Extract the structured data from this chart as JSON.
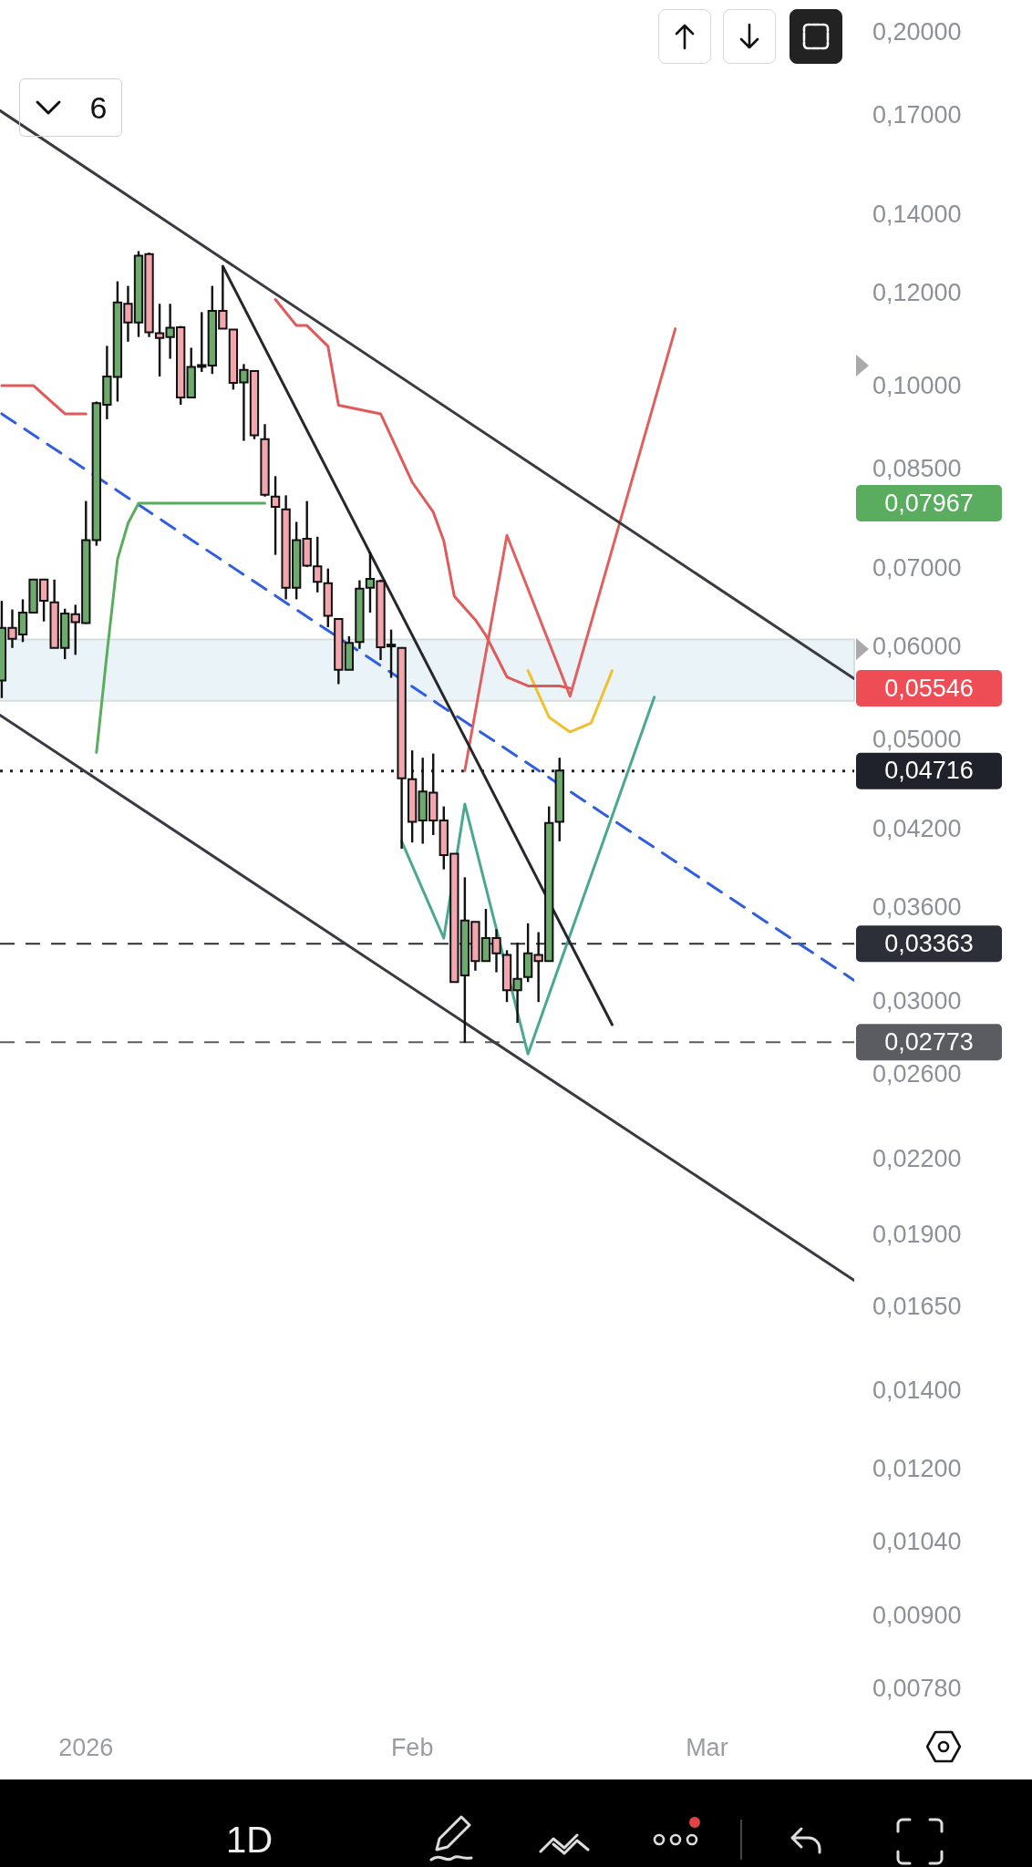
{
  "chart_data": {
    "type": "candlestick",
    "x": [
      "2025-12-24",
      "2025-12-25",
      "2025-12-26",
      "2025-12-27",
      "2025-12-28",
      "2025-12-29",
      "2025-12-30",
      "2025-12-31",
      "2026-01-01",
      "2026-01-02",
      "2026-01-03",
      "2026-01-04",
      "2026-01-05",
      "2026-01-06",
      "2026-01-07",
      "2026-01-08",
      "2026-01-09",
      "2026-01-10",
      "2026-01-11",
      "2026-01-12",
      "2026-01-13",
      "2026-01-14",
      "2026-01-15",
      "2026-01-16",
      "2026-01-17",
      "2026-01-18",
      "2026-01-19",
      "2026-01-20",
      "2026-01-21",
      "2026-01-22",
      "2026-01-23",
      "2026-01-24",
      "2026-01-25",
      "2026-01-26",
      "2026-01-27",
      "2026-01-28",
      "2026-01-29",
      "2026-01-30",
      "2026-01-31",
      "2026-02-01",
      "2026-02-02",
      "2026-02-03",
      "2026-02-04",
      "2026-02-05",
      "2026-02-06",
      "2026-02-07",
      "2026-02-08",
      "2026-02-09",
      "2026-02-10",
      "2026-02-11",
      "2026-02-12",
      "2026-02-13",
      "2026-02-14",
      "2026-02-15"
    ],
    "ohlc": [
      [
        0.0563,
        0.0658,
        0.0544,
        0.0624
      ],
      [
        0.0624,
        0.0647,
        0.06,
        0.0611
      ],
      [
        0.0616,
        0.066,
        0.0607,
        0.0643
      ],
      [
        0.0643,
        0.0687,
        0.0642,
        0.0686
      ],
      [
        0.0686,
        0.0687,
        0.0632,
        0.0658
      ],
      [
        0.0656,
        0.0686,
        0.06,
        0.06
      ],
      [
        0.06,
        0.0648,
        0.0587,
        0.0642
      ],
      [
        0.0641,
        0.0653,
        0.0592,
        0.0631
      ],
      [
        0.063,
        0.08,
        0.0629,
        0.0741
      ],
      [
        0.0741,
        0.0972,
        0.0733,
        0.0969
      ],
      [
        0.0966,
        0.1084,
        0.0939,
        0.1021
      ],
      [
        0.102,
        0.123,
        0.0972,
        0.118
      ],
      [
        0.1177,
        0.1219,
        0.1093,
        0.1135
      ],
      [
        0.1135,
        0.1305,
        0.1103,
        0.1293
      ],
      [
        0.1297,
        0.1301,
        0.1103,
        0.1113
      ],
      [
        0.1111,
        0.1177,
        0.1021,
        0.1101
      ],
      [
        0.1103,
        0.1177,
        0.1057,
        0.1123
      ],
      [
        0.1124,
        0.1127,
        0.0966,
        0.098
      ],
      [
        0.098,
        0.108,
        0.098,
        0.104
      ],
      [
        0.1042,
        0.1158,
        0.103,
        0.1044
      ],
      [
        0.1043,
        0.1219,
        0.1026,
        0.1161
      ],
      [
        0.1161,
        0.1265,
        0.1121,
        0.1121
      ],
      [
        0.1119,
        0.1119,
        0.0995,
        0.1008
      ],
      [
        0.1009,
        0.1046,
        0.09,
        0.1034
      ],
      [
        0.1032,
        0.1032,
        0.0903,
        0.091
      ],
      [
        0.0903,
        0.093,
        0.0807,
        0.081
      ],
      [
        0.0807,
        0.084,
        0.072,
        0.0791
      ],
      [
        0.0787,
        0.0809,
        0.066,
        0.0675
      ],
      [
        0.0675,
        0.0768,
        0.066,
        0.0741
      ],
      [
        0.0743,
        0.08,
        0.0703,
        0.0705
      ],
      [
        0.0704,
        0.0746,
        0.0669,
        0.0683
      ],
      [
        0.0681,
        0.0701,
        0.0625,
        0.0639
      ],
      [
        0.0635,
        0.0636,
        0.0559,
        0.0575
      ],
      [
        0.0575,
        0.0614,
        0.0575,
        0.0606
      ],
      [
        0.0607,
        0.0685,
        0.0599,
        0.0674
      ],
      [
        0.0675,
        0.0724,
        0.0643,
        0.0687
      ],
      [
        0.0684,
        0.0686,
        0.0586,
        0.0601
      ],
      [
        0.0604,
        0.0622,
        0.0566,
        0.0603
      ],
      [
        0.06,
        0.0601,
        0.0405,
        0.0465
      ],
      [
        0.0464,
        0.0491,
        0.041,
        0.0427
      ],
      [
        0.0428,
        0.0484,
        0.0409,
        0.0453
      ],
      [
        0.0452,
        0.0488,
        0.0416,
        0.0428
      ],
      [
        0.0428,
        0.044,
        0.0389,
        0.04
      ],
      [
        0.0401,
        0.0401,
        0.0312,
        0.0312
      ],
      [
        0.0316,
        0.0383,
        0.0277,
        0.0352
      ],
      [
        0.0351,
        0.0351,
        0.0319,
        0.0325
      ],
      [
        0.0325,
        0.036,
        0.0325,
        0.034
      ],
      [
        0.034,
        0.0346,
        0.0318,
        0.033
      ],
      [
        0.0329,
        0.0332,
        0.03,
        0.0307
      ],
      [
        0.0307,
        0.0337,
        0.0288,
        0.0314
      ],
      [
        0.0315,
        0.035,
        0.0312,
        0.033
      ],
      [
        0.0329,
        0.0344,
        0.03,
        0.0325
      ],
      [
        0.0325,
        0.044,
        0.0325,
        0.0426
      ],
      [
        0.0427,
        0.0484,
        0.0411,
        0.0472
      ]
    ],
    "series": [
      {
        "type": "line",
        "color": "#e05a5a",
        "x": [
          "2025-12-24",
          "2025-12-27",
          "2025-12-30",
          "2026-01-01",
          "2026-01-10",
          "2026-01-19",
          "2026-01-21",
          "2026-01-22",
          "2026-01-24",
          "2026-01-25",
          "2026-01-29",
          "2026-02-01",
          "2026-02-03",
          "2026-02-04",
          "2026-02-05",
          "2026-02-07",
          "2026-02-08",
          "2026-02-10",
          "2026-02-12",
          "2026-02-15",
          "2026-02-16"
        ],
        "values": [
          0.1003,
          0.1003,
          0.0949,
          0.0949,
          null,
          0.1187,
          0.1128,
          0.1128,
          0.1083,
          0.0965,
          0.0949,
          0.083,
          0.0783,
          0.074,
          0.0664,
          0.0634,
          0.0615,
          0.0567,
          0.0557,
          0.0557,
          0.05546
        ]
      },
      {
        "type": "line",
        "color": "#5aac5e",
        "x": [
          "2026-01-02",
          "2026-01-03",
          "2026-01-04",
          "2026-01-05",
          "2026-01-06",
          "2026-01-18"
        ],
        "values": [
          0.0489,
          0.0594,
          0.0714,
          0.0766,
          0.07967,
          0.07967
        ]
      },
      {
        "type": "line",
        "color": "#3a3b42",
        "x": [
          "2025-12-23T20:00",
          "2026-03-15"
        ],
        "values": [
          0.1718,
          0.0565
        ]
      },
      {
        "type": "line",
        "color": "#3a3b42",
        "x": [
          "2025-12-23T20:00",
          "2026-03-15"
        ],
        "values": [
          0.0526,
          0.0174
        ]
      },
      {
        "type": "line",
        "color": "#2f5fe0",
        "line_style": "dashed",
        "x": [
          "2025-12-24",
          "2026-03-15"
        ],
        "values": [
          0.0949,
          0.0313
        ]
      },
      {
        "type": "line",
        "color": "#26272c",
        "x": [
          "2026-01-14",
          "2026-02-20"
        ],
        "values": [
          0.1267,
          0.0287
        ]
      },
      {
        "type": "line",
        "color": "#e06060",
        "x": [
          "2026-02-06",
          "2026-02-10",
          "2026-02-16",
          "2026-02-26"
        ],
        "values": [
          0.0472,
          0.0748,
          0.0546,
          0.1121
        ]
      },
      {
        "type": "line",
        "color": "#4aa890",
        "x": [
          "2026-01-31",
          "2026-02-04",
          "2026-02-06",
          "2026-02-12",
          "2026-02-24"
        ],
        "values": [
          0.0411,
          0.034,
          0.0442,
          0.0271,
          0.0545
        ]
      },
      {
        "type": "line",
        "color": "#f0c030",
        "x": [
          "2026-02-12",
          "2026-02-14",
          "2026-02-16",
          "2026-02-18",
          "2026-02-20"
        ],
        "values": [
          0.0574,
          0.0524,
          0.0509,
          0.0518,
          0.0574
        ]
      }
    ],
    "log": true,
    "ylim": [
      0.0078,
      0.2
    ],
    "yticks": [
      {
        "value": 0.2,
        "label": "0,20000"
      },
      {
        "value": 0.17,
        "label": "0,17000"
      },
      {
        "value": 0.14,
        "label": "0,14000"
      },
      {
        "value": 0.12,
        "label": "0,12000"
      },
      {
        "value": 0.1,
        "label": "0,10000"
      },
      {
        "value": 0.085,
        "label": "0,08500"
      },
      {
        "value": 0.07,
        "label": "0,07000"
      },
      {
        "value": 0.06,
        "label": "0,06000"
      },
      {
        "value": 0.05,
        "label": "0,05000"
      },
      {
        "value": 0.042,
        "label": "0,04200"
      },
      {
        "value": 0.036,
        "label": "0,03600"
      },
      {
        "value": 0.03,
        "label": "0,03000"
      },
      {
        "value": 0.026,
        "label": "0,02600"
      },
      {
        "value": 0.022,
        "label": "0,02200"
      },
      {
        "value": 0.019,
        "label": "0,01900"
      },
      {
        "value": 0.0165,
        "label": "0,01650"
      },
      {
        "value": 0.014,
        "label": "0,01400"
      },
      {
        "value": 0.012,
        "label": "0,01200"
      },
      {
        "value": 0.0104,
        "label": "0,01040"
      },
      {
        "value": 0.009,
        "label": "0,00900"
      },
      {
        "value": 0.0078,
        "label": "0,00780"
      }
    ],
    "xlim": [
      "2025-12-23T20:00",
      "2026-03-15"
    ],
    "xticks": [
      {
        "value": "2026-01-01",
        "label": "2026"
      },
      {
        "value": "2026-02-01",
        "label": "Feb"
      },
      {
        "value": "2026-03-01",
        "label": "Mar"
      }
    ],
    "grid": false,
    "legend": false,
    "bands": [
      {
        "axis": "y",
        "from": 0.0541,
        "to": 0.061,
        "color": "#eaf4f8"
      }
    ],
    "ref_lines": [
      {
        "axis": "y",
        "value": 0.04716,
        "label": "0,04716",
        "color": "#1f222b",
        "line_style": "dotted"
      },
      {
        "axis": "y",
        "value": 0.03363,
        "label": "0,03363",
        "color": "#2c2f38",
        "line_style": "dashed"
      },
      {
        "axis": "y",
        "value": 0.02773,
        "label": "0,02773",
        "color": "#5a5c62",
        "line_style": "dashed"
      }
    ],
    "annotations": [
      "6",
      "1D",
      "0,07967",
      "0,05546"
    ]
  }
}
